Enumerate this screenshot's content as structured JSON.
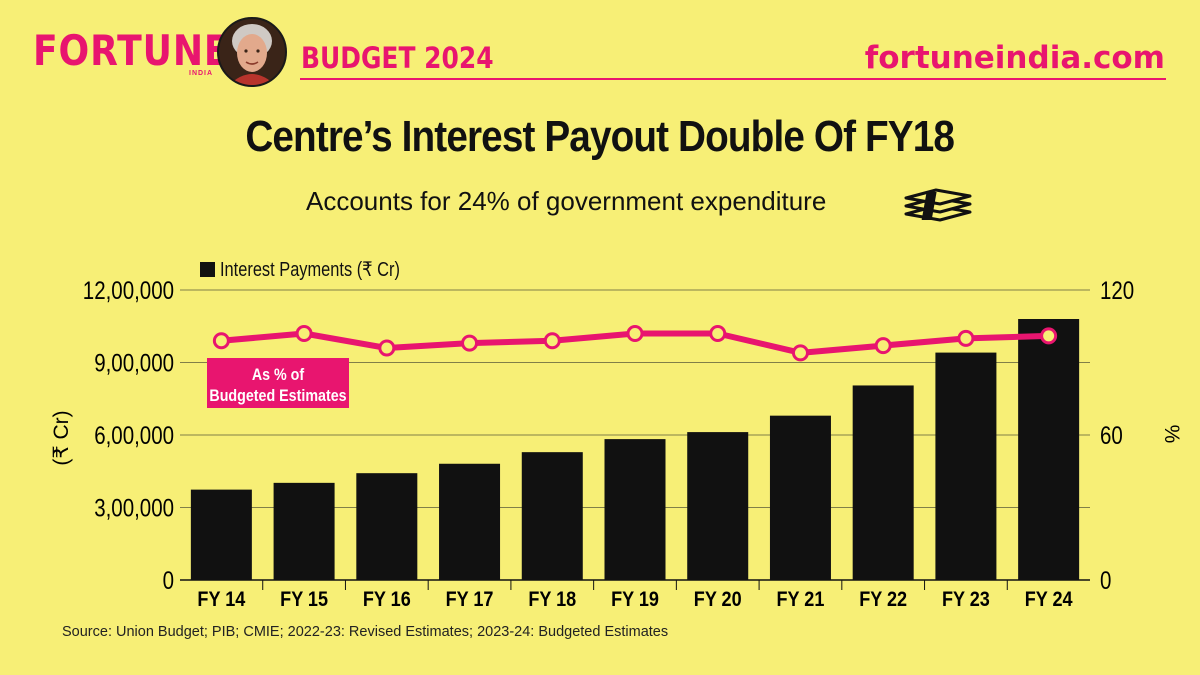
{
  "header": {
    "brand": "FORTUNE",
    "brand_sub": "INDIA",
    "section": "BUDGET 2024",
    "site": "fortuneindia.com"
  },
  "title": "Centre’s Interest Payout Double Of FY18",
  "subtitle": "Accounts for 24% of government expenditure",
  "icons": {
    "avatar": "portrait-avatar-icon",
    "money": "money-stack-icon"
  },
  "colors": {
    "background": "#f7ef76",
    "accent": "#e8156f",
    "bars": "#111111"
  },
  "source": "Source: Union Budget; PIB; CMIE; 2022-23: Revised Estimates; 2023-24: Budgeted Estimates",
  "chart_data": {
    "type": "bar",
    "categories": [
      "FY 14",
      "FY 15",
      "FY 16",
      "FY 17",
      "FY 18",
      "FY 19",
      "FY 20",
      "FY 21",
      "FY 22",
      "FY 23",
      "FY 24"
    ],
    "series": [
      {
        "name": "Interest Payments (₹ Cr)",
        "type": "bar",
        "axis": "left",
        "values": [
          374000,
          402000,
          442000,
          481000,
          529000,
          583000,
          612000,
          680000,
          805000,
          941000,
          1080000
        ]
      },
      {
        "name": "As % of Budgeted Estimates",
        "type": "line",
        "axis": "right",
        "values": [
          99,
          102,
          96,
          98,
          99,
          102,
          102,
          94,
          97,
          100,
          101
        ]
      }
    ],
    "ylabel": "(₹ Cr)",
    "y2label": "%",
    "ylim": [
      0,
      1200000
    ],
    "y2lim": [
      0,
      120
    ],
    "yticks": [
      "0",
      "3,00,000",
      "6,00,000",
      "9,00,000",
      "12,00,000"
    ],
    "y2ticks": [
      "0",
      "60",
      "120"
    ],
    "line_annotation": "As % of Budgeted Estimates",
    "legend": "top-left",
    "grid": "horizontal"
  }
}
